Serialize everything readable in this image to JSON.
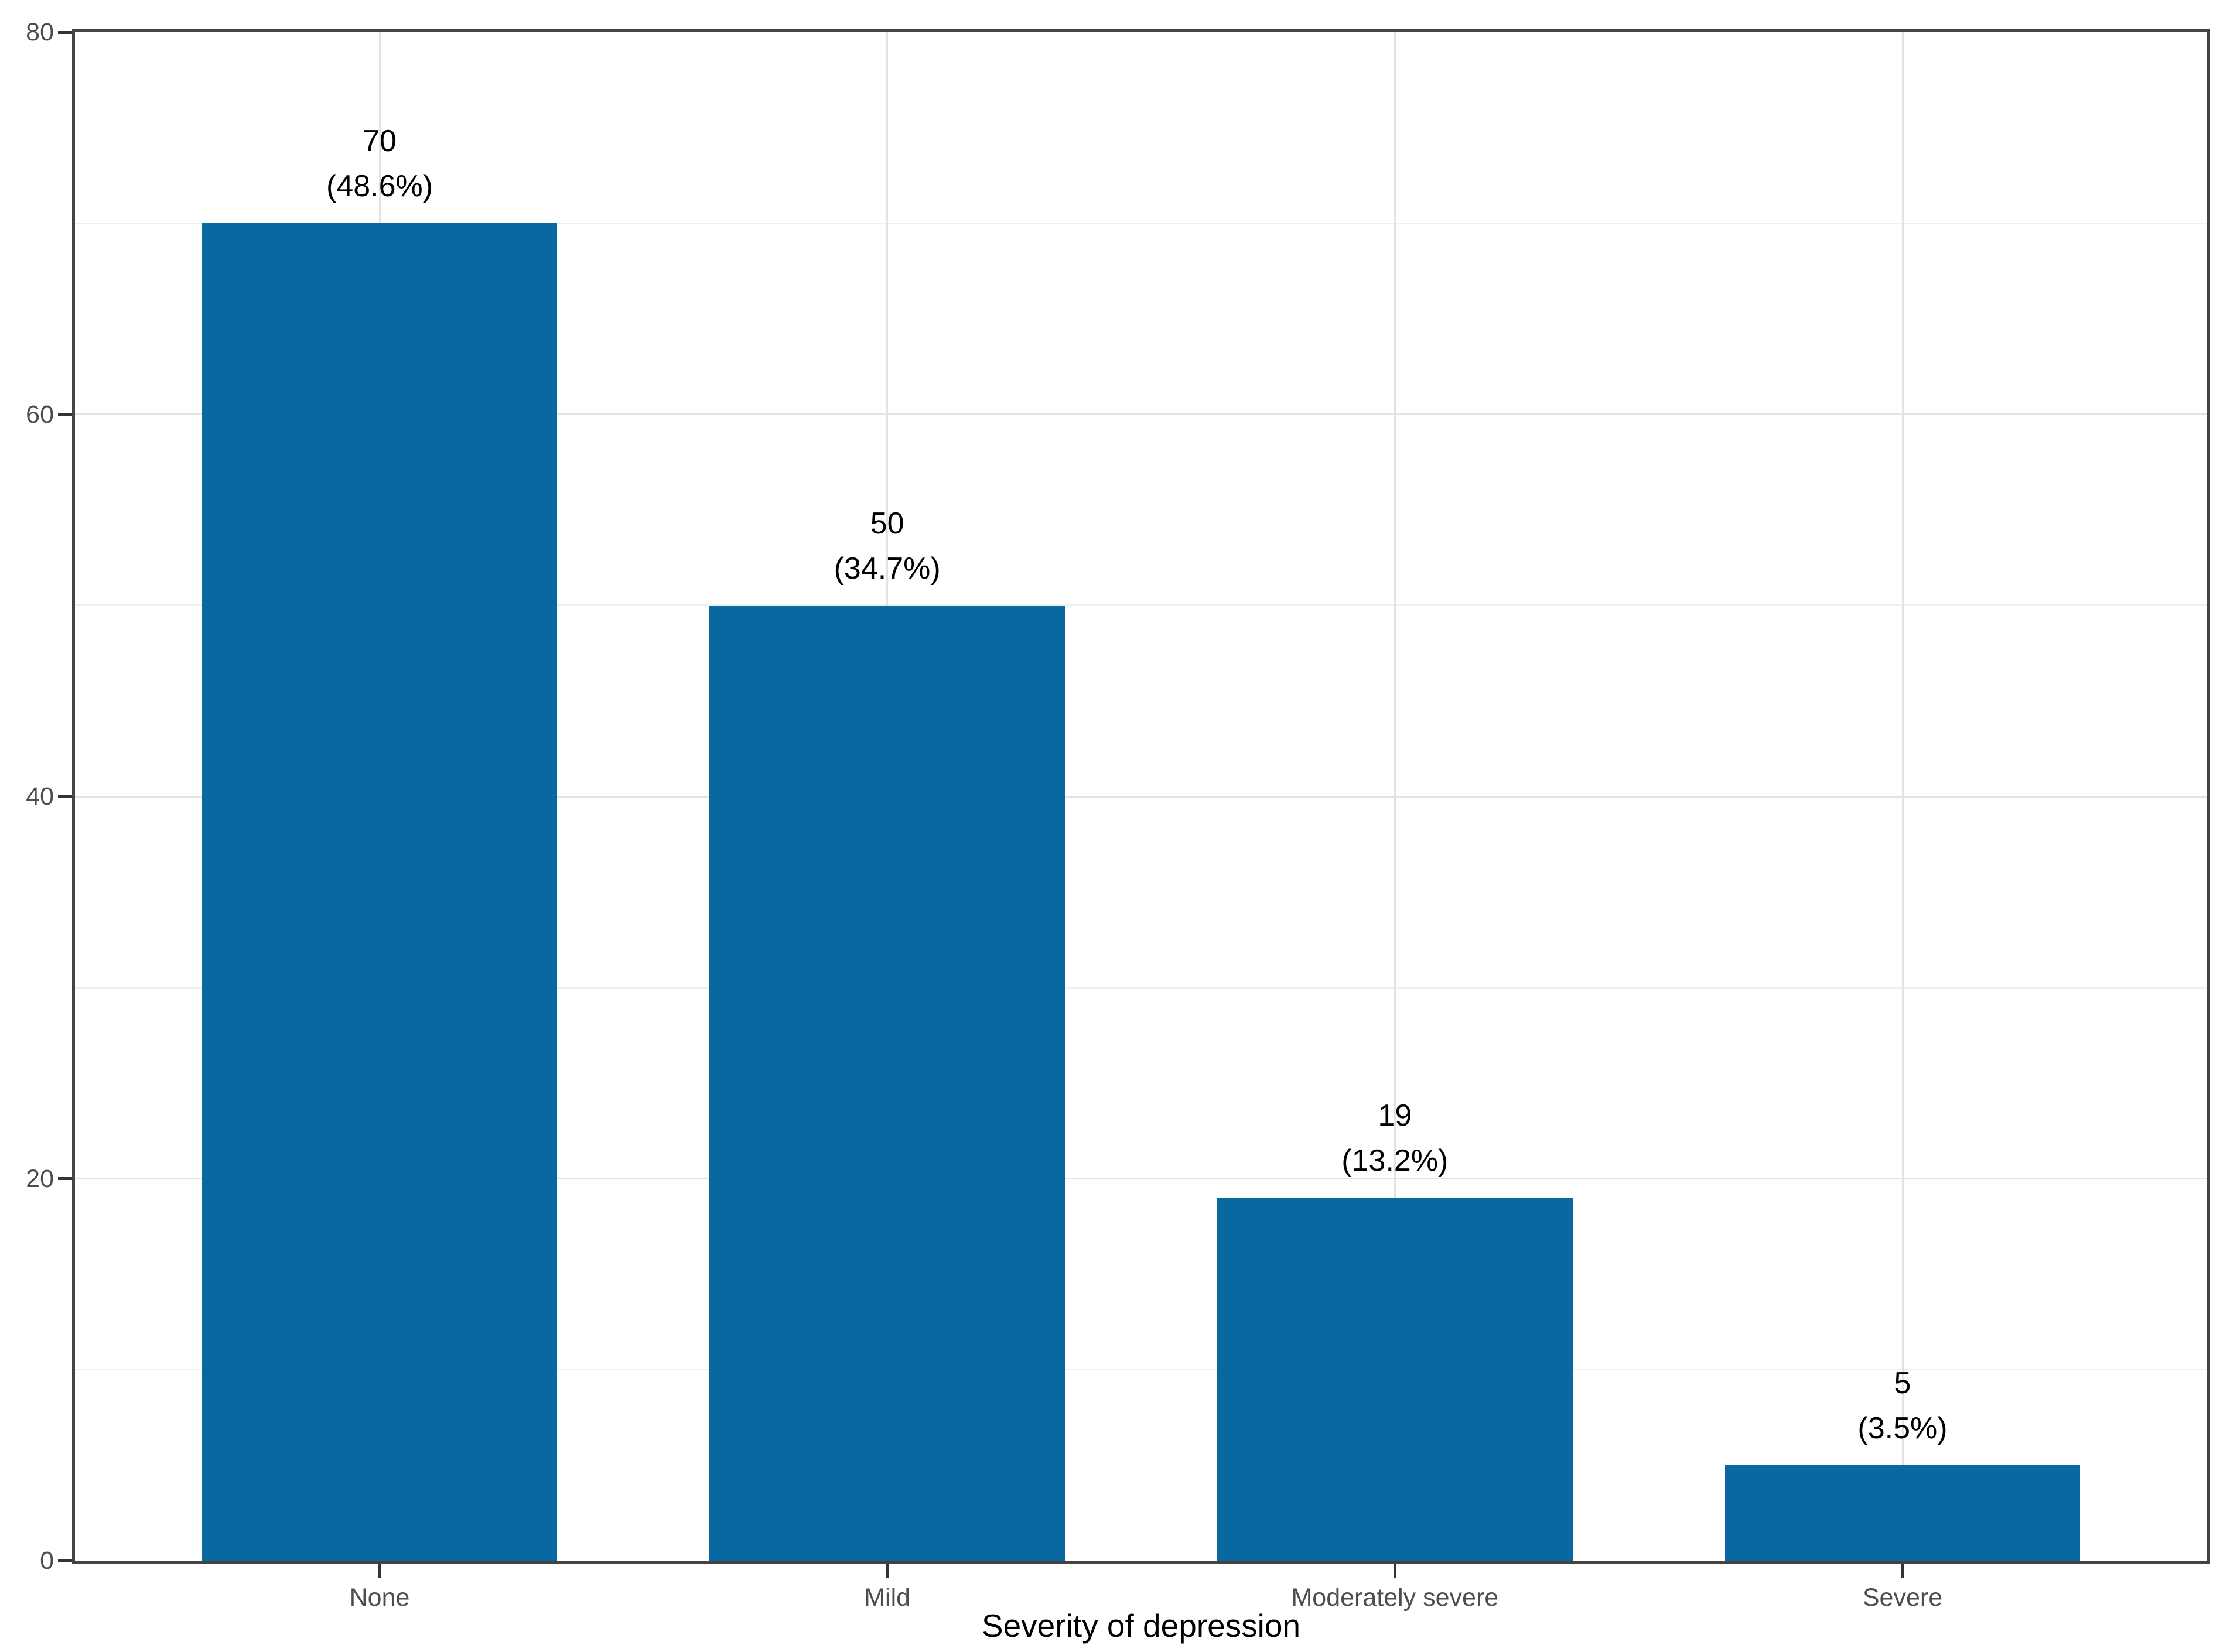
{
  "chart_data": {
    "type": "bar",
    "title": "",
    "categories": [
      "None",
      "Mild",
      "Moderately severe",
      "Severe"
    ],
    "values": [
      70,
      50,
      19,
      5
    ],
    "bar_labels": [
      {
        "count": "70",
        "pct": "(48.6%)"
      },
      {
        "count": "50",
        "pct": "(34.7%)"
      },
      {
        "count": "19",
        "pct": "(13.2%)"
      },
      {
        "count": "5",
        "pct": "(3.5%)"
      }
    ],
    "xlabel": "Severity of depression",
    "ylabel": "",
    "ylim": [
      0,
      80
    ],
    "yticks": [
      0,
      20,
      40,
      60,
      80
    ],
    "yminor": [
      10,
      30,
      50,
      70
    ],
    "grid": "horizontal major+minor, vertical major at category centers",
    "legend_position": "none",
    "bar_color": "#0A68A1"
  },
  "colors": {
    "bar": "#0A68A1",
    "panel_border": "#434343",
    "grid_major": "#e3e3e3",
    "grid_minor": "#efefef",
    "tick_mark": "#333333",
    "tick_label": "#4d4d4d",
    "data_label": "#000000",
    "axis_title": "#000000",
    "background": "#ffffff"
  }
}
